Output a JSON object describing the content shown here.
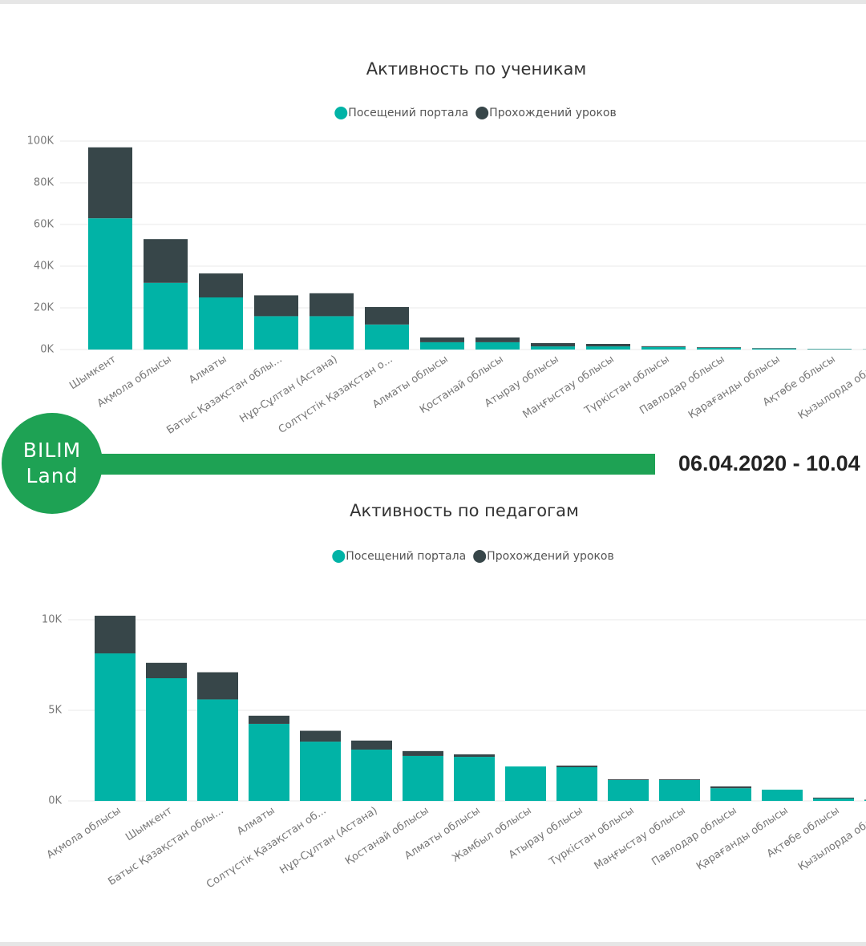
{
  "banner": {
    "logo_top": "BILIM",
    "logo_bottom": "Land",
    "date": "06.04.2020 - 10.04"
  },
  "chart_data": [
    {
      "type": "bar",
      "stacked": true,
      "title": "Активность по ученикам",
      "categories": [
        "Шымкент",
        "Ақмола облысы",
        "Алматы",
        "Батыс Қазақстан облы...",
        "Нұр-Сұлтан (Астана)",
        "Солтүстік Қазақстан о...",
        "Алматы облысы",
        "Қостанай облысы",
        "Атырау облысы",
        "Маңғыстау облысы",
        "Түркістан облысы",
        "Павлодар облысы",
        "Қарағанды облысы",
        "Ақтөбе облысы",
        "Қызылорда облысы"
      ],
      "series": [
        {
          "name": "Посещений портала",
          "color": "#01b3a6",
          "values": [
            63000,
            32000,
            25000,
            16000,
            16000,
            12000,
            3500,
            3500,
            1500,
            1500,
            1200,
            800,
            500,
            200,
            100
          ]
        },
        {
          "name": "Прохождений уроков",
          "color": "#374649",
          "values": [
            34000,
            21000,
            11500,
            10000,
            11000,
            8400,
            2300,
            2300,
            1600,
            1200,
            400,
            300,
            200,
            100,
            50
          ]
        }
      ],
      "ylim": [
        0,
        100000
      ],
      "yticks": [
        {
          "value": 0,
          "label": "0K"
        },
        {
          "value": 20000,
          "label": "20K"
        },
        {
          "value": 40000,
          "label": "40K"
        },
        {
          "value": 60000,
          "label": "60K"
        },
        {
          "value": 80000,
          "label": "80K"
        },
        {
          "value": 100000,
          "label": "100K"
        }
      ],
      "grid": true
    },
    {
      "type": "bar",
      "stacked": true,
      "title": "Активность по педагогам",
      "categories": [
        "Ақмола облысы",
        "Шымкент",
        "Батыс Қазақстан облы...",
        "Алматы",
        "Солтүстік Қазақстан об...",
        "Нұр-Сұлтан (Астана)",
        "Қостанай облысы",
        "Алматы облысы",
        "Жамбыл облысы",
        "Атырау облысы",
        "Түркістан облысы",
        "Маңғыстау облысы",
        "Павлодар облысы",
        "Қарағанды облысы",
        "Ақтөбе облысы",
        "Қызылорда облысы"
      ],
      "series": [
        {
          "name": "Посещений портала",
          "color": "#01b3a6",
          "values": [
            8140,
            6770,
            5600,
            4250,
            3270,
            2830,
            2480,
            2430,
            1900,
            1860,
            1150,
            1150,
            700,
            620,
            130,
            50
          ]
        },
        {
          "name": "Прохождений уроков",
          "color": "#374649",
          "values": [
            2080,
            850,
            1500,
            450,
            600,
            500,
            270,
            140,
            0,
            90,
            40,
            40,
            100,
            0,
            50,
            20
          ]
        }
      ],
      "ylim": [
        0,
        10000
      ],
      "yticks": [
        {
          "value": 0,
          "label": "0K"
        },
        {
          "value": 5000,
          "label": "5K"
        },
        {
          "value": 10000,
          "label": "10K"
        }
      ],
      "grid": true
    }
  ]
}
